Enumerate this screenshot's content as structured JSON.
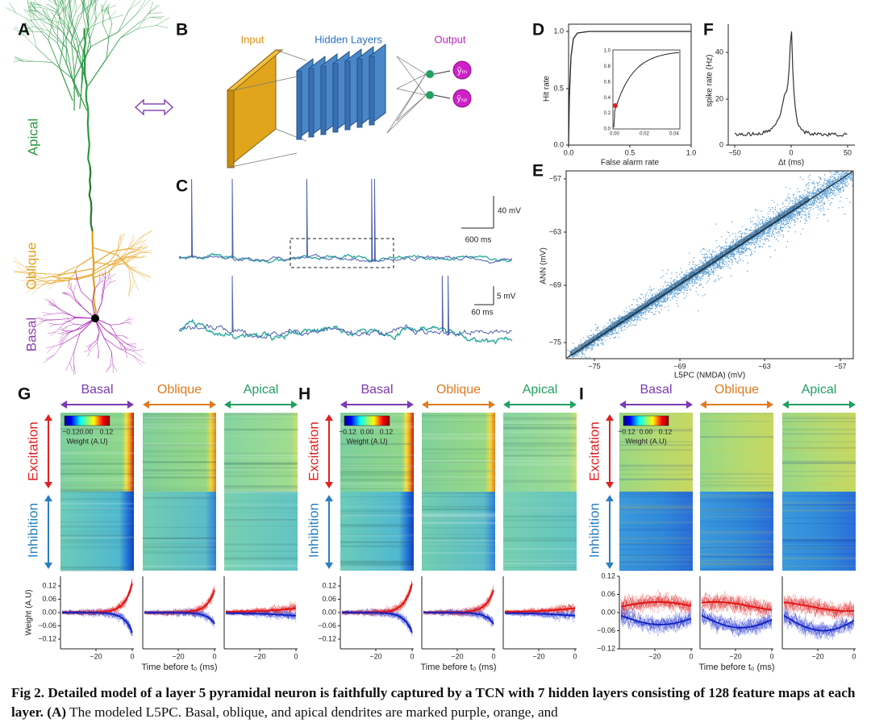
{
  "panel_a": {
    "letter": "A",
    "labels": [
      "Apical",
      "Oblique",
      "Basal"
    ]
  },
  "panel_b": {
    "letter": "B",
    "input": "Input",
    "hidden": "Hidden Layers",
    "output": "Output",
    "outputs": [
      "ŷₘ",
      "ŷₛₚ"
    ]
  },
  "panel_c": {
    "letter": "C",
    "top_scale": [
      "40 mV",
      "600 ms"
    ],
    "bottom_scale": [
      "5 mV",
      "60 ms"
    ]
  },
  "panel_d": {
    "letter": "D",
    "ylabel": "Hit rate",
    "xlabel": "False alarm rate",
    "yticks": [
      "0.0",
      "0.5",
      "1.0"
    ],
    "xticks": [
      "0.0",
      "0.5",
      "1.0"
    ],
    "inset_yticks": [
      "0.0",
      "0.2",
      "0.4",
      "0.6",
      "0.8",
      "1.0"
    ],
    "inset_xticks": [
      "0.00",
      "0.02",
      "0.04"
    ]
  },
  "panel_f": {
    "letter": "F",
    "ylabel": "spike rate (Hz)",
    "xlabel": "Δt (ms)",
    "yticks": [
      "0",
      "20",
      "40"
    ],
    "xticks": [
      "−50",
      "0",
      "50"
    ]
  },
  "panel_e": {
    "letter": "E",
    "ylabel": "ANN (mV)",
    "xlabel": "L5PC (NMDA) (mV)",
    "yticks": [
      "−57",
      "−63",
      "−69",
      "−75"
    ],
    "xticks": [
      "−75",
      "−69",
      "−63",
      "−57"
    ]
  },
  "weight_panels": [
    {
      "letter": "G",
      "columns": [
        "Basal",
        "Oblique",
        "Apical"
      ],
      "rows": [
        "Excitation",
        "Inhibition"
      ],
      "colorbar": [
        "−0.12",
        "0.00",
        "0.12"
      ],
      "colorbar_label": "Weight (A.U)",
      "yticks": [
        "0.12",
        "0.06",
        "0.00",
        "−0.06",
        "−0.12"
      ],
      "ylabel": "Weight (A.U)",
      "xticks": [
        "−20",
        "0"
      ],
      "xlabel": "Time before t₀ (ms)"
    },
    {
      "letter": "H",
      "columns": [
        "Basal",
        "Oblique",
        "Apical"
      ],
      "rows": [
        "Excitation",
        "Inhibition"
      ],
      "colorbar": [
        "−0.12",
        "0.00",
        "0.12"
      ],
      "colorbar_label": "Weight (A.U)",
      "yticks": [
        "0.12",
        "0.06",
        "0.00",
        "−0.06",
        "−0.12"
      ],
      "xticks": [
        "−20",
        "0"
      ],
      "xlabel": "Time before t₀ (ms)"
    },
    {
      "letter": "I",
      "columns": [
        "Basal",
        "Oblique",
        "Apical"
      ],
      "rows": [
        "Excitation",
        "Inhibition"
      ],
      "colorbar": [
        "−0.12",
        "0.00",
        "0.12"
      ],
      "colorbar_label": "Weight (A.U)",
      "yticks": [
        "0.12",
        "0.06",
        "0.00",
        "−0.06",
        "−0.12"
      ],
      "xticks": [
        "−20",
        "0"
      ],
      "xlabel": "Time before t₀ (ms)"
    }
  ],
  "caption": {
    "bold": "Fig 2. Detailed model of a layer 5 pyramidal neuron is faithfully captured by a TCN with 7 hidden layers consisting of 128 feature maps at each layer",
    "label": ". (A)",
    "text": " The modeled L5PC. Basal, oblique, and apical dendrites are marked purple, orange, and"
  }
}
